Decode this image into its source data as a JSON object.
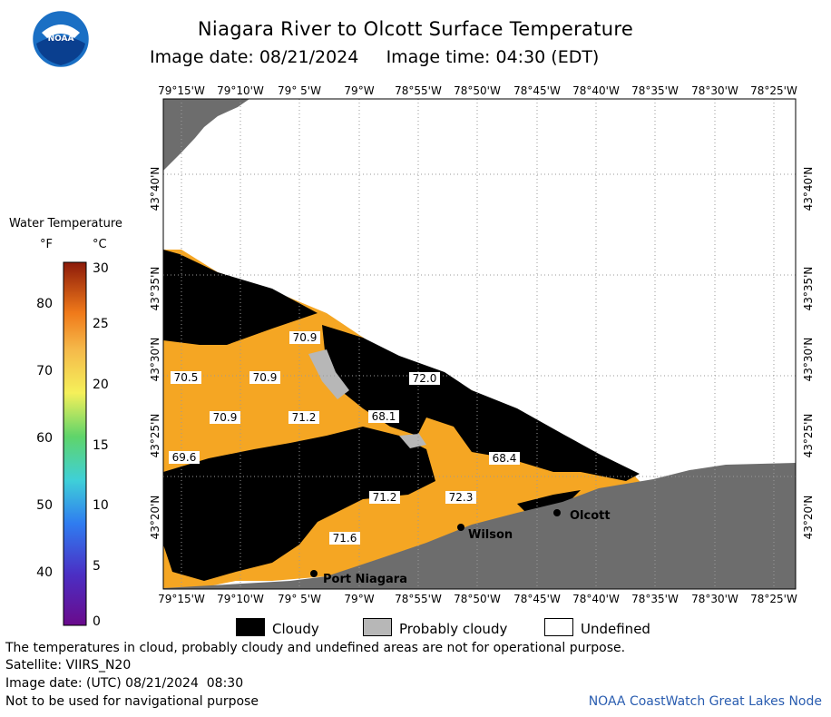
{
  "header": {
    "title": "Niagara River to Olcott Surface Temperature",
    "image_date_label": "Image date:",
    "image_date": "08/21/2024",
    "image_time_label": "Image time:",
    "image_time": "04:30 (EDT)"
  },
  "logo": {
    "text": "NOAA",
    "icon": "noaa-logo"
  },
  "legend": {
    "title": "Water Temperature",
    "unit_f": "°F",
    "unit_c": "°C",
    "f_ticks": [
      "80",
      "70",
      "60",
      "50",
      "40"
    ],
    "c_ticks": [
      "30",
      "25",
      "20",
      "15",
      "10",
      "5",
      "0"
    ]
  },
  "map": {
    "lon_labels": [
      "79°15'W",
      "79°10'W",
      "79° 5'W",
      "79°W",
      "78°55'W",
      "78°50'W",
      "78°45'W",
      "78°40'W",
      "78°35'W",
      "78°30'W",
      "78°25'W"
    ],
    "lat_labels": [
      "43°40'N",
      "43°35'N",
      "43°30'N",
      "43°25'N",
      "43°20'N"
    ],
    "temperatures": [
      "70.9",
      "70.5",
      "70.9",
      "72.0",
      "70.9",
      "71.2",
      "68.1",
      "69.6",
      "68.4",
      "71.2",
      "72.3",
      "71.6"
    ],
    "places": [
      "Olcott",
      "Wilson",
      "Port Niagara"
    ],
    "colors": {
      "water": "#f5a623",
      "cloud": "#000000",
      "land": "#6d6d6d",
      "probably_cloudy": "#b7b7b7",
      "grid": "#9a9a9a"
    }
  },
  "key": {
    "cloudy": "Cloudy",
    "probably_cloudy": "Probably cloudy",
    "undefined": "Undefined"
  },
  "footer": {
    "disclaimer": "The temperatures in cloud, probably cloudy and undefined areas are not for operational purpose.",
    "satellite": "Satellite: VIIRS_N20",
    "utc_date": "Image date: (UTC) 08/21/2024  08:30",
    "nav_warning": "Not to be used for navigational purpose",
    "credit": "NOAA CoastWatch Great Lakes Node"
  }
}
